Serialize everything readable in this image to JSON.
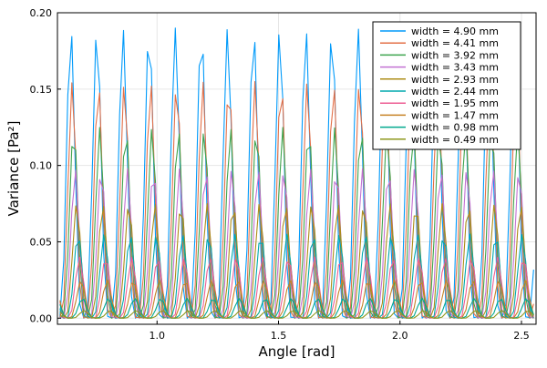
{
  "chart_data": {
    "type": "line",
    "title": "",
    "xlabel": "Angle [rad]",
    "ylabel": "Variance [Pa²]",
    "xlim": [
      0.59,
      2.56
    ],
    "ylim": [
      -0.004,
      0.2
    ],
    "xticks": [
      1.0,
      1.5,
      2.0,
      2.5
    ],
    "xtick_labels": [
      "1.0",
      "1.5",
      "2.0",
      "2.5"
    ],
    "yticks": [
      0.0,
      0.05,
      0.1,
      0.15,
      0.2
    ],
    "ytick_labels": [
      "0.00",
      "0.05",
      "0.10",
      "0.15",
      "0.20"
    ],
    "grid": true,
    "legend_position": "top-right",
    "x": [
      0.6,
      2.55
    ],
    "x_points": 120,
    "oscillation_period_rad": 0.1075,
    "series": [
      {
        "name": "width = 4.90 mm",
        "color": "#009AFA",
        "peak": 0.19,
        "phase": 0.0
      },
      {
        "name": "width = 4.41 mm",
        "color": "#E36F47",
        "peak": 0.155,
        "phase": 0.006
      },
      {
        "name": "width = 3.92 mm",
        "color": "#3EA44E",
        "peak": 0.125,
        "phase": 0.012
      },
      {
        "name": "width = 3.43 mm",
        "color": "#C371D2",
        "peak": 0.098,
        "phase": 0.018
      },
      {
        "name": "width = 2.93 mm",
        "color": "#AC8D18",
        "peak": 0.075,
        "phase": 0.024
      },
      {
        "name": "width = 2.44 mm",
        "color": "#00A9AD",
        "peak": 0.055,
        "phase": 0.03
      },
      {
        "name": "width = 1.95 mm",
        "color": "#ED5E93",
        "peak": 0.04,
        "phase": 0.036
      },
      {
        "name": "width = 1.47 mm",
        "color": "#C68225",
        "peak": 0.025,
        "phase": 0.042
      },
      {
        "name": "width = 0.98 mm",
        "color": "#00A98E",
        "peak": 0.013,
        "phase": 0.048
      },
      {
        "name": "width = 0.49 mm",
        "color": "#8E971E",
        "peak": 0.005,
        "phase": 0.054
      }
    ]
  }
}
